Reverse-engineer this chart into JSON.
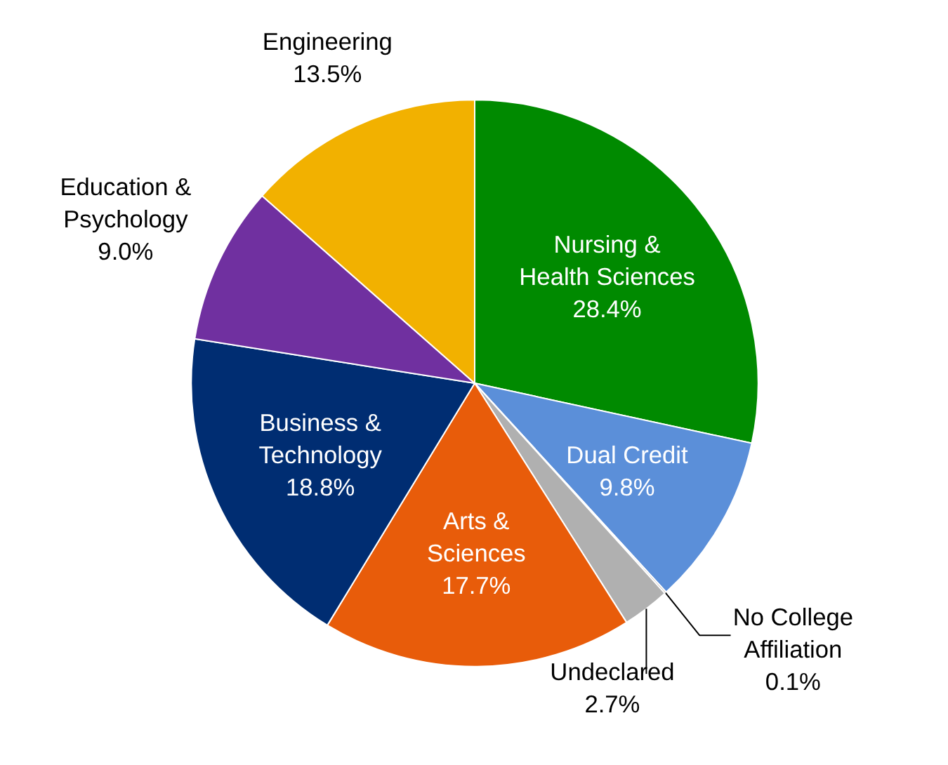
{
  "chart_data": {
    "type": "pie",
    "categories": [
      "Nursing & Health Sciences",
      "Dual Credit",
      "No College Affiliation",
      "Undeclared",
      "Arts & Sciences",
      "Business & Technology",
      "Education & Psychology",
      "Engineering"
    ],
    "values": [
      28.4,
      9.8,
      0.1,
      2.7,
      17.7,
      18.8,
      9.0,
      13.5
    ],
    "colors": [
      "#008a00",
      "#5b8fd9",
      "#7a5a44",
      "#b0b0b0",
      "#e85c0a",
      "#002d72",
      "#7030a0",
      "#f2b100"
    ],
    "value_labels": [
      "28.4%",
      "9.8%",
      "0.1%",
      "2.7%",
      "17.7%",
      "18.8%",
      "9.0%",
      "13.5%"
    ]
  }
}
